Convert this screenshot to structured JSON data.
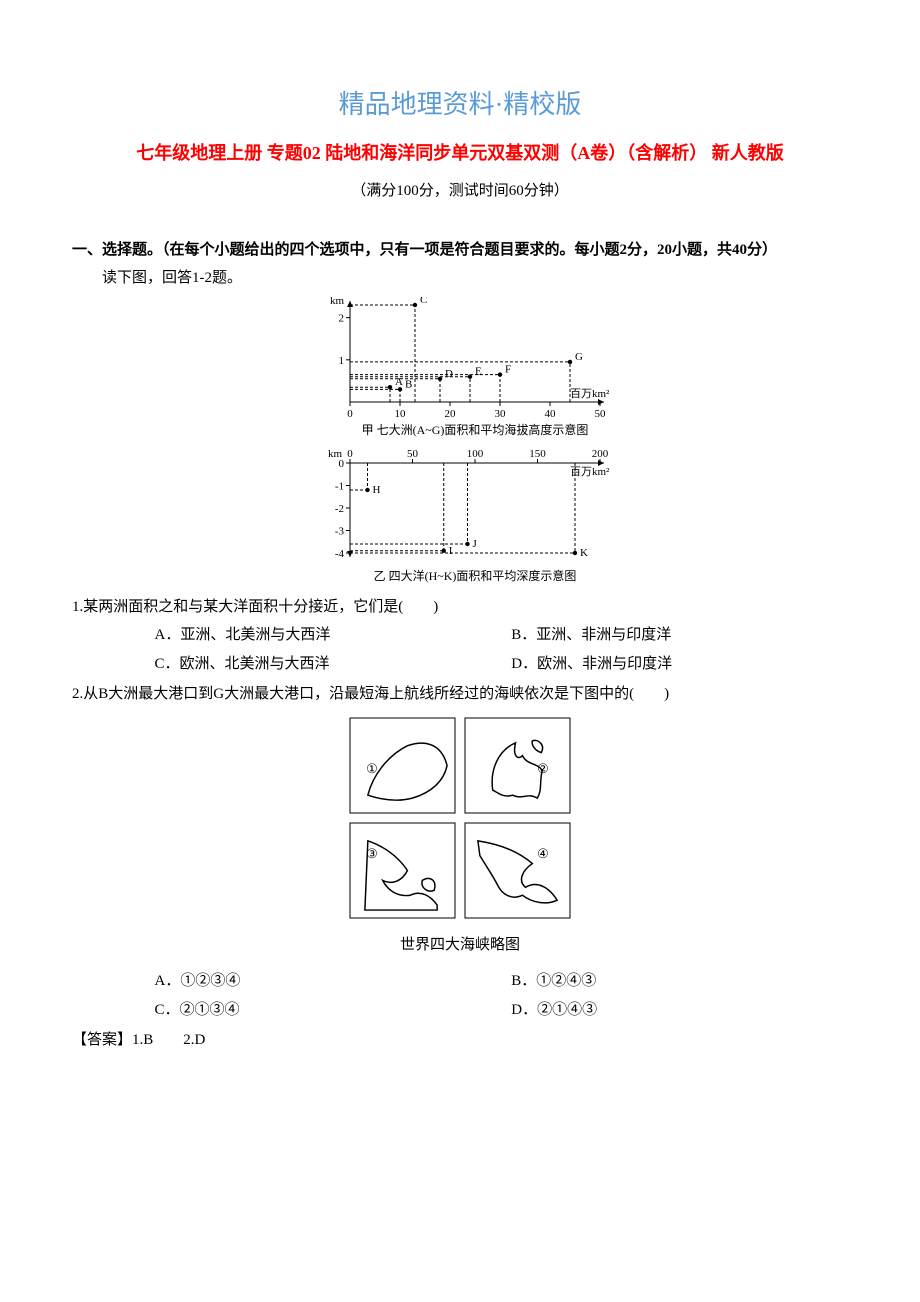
{
  "header": {
    "main_title": "精品地理资料·精校版",
    "sub_title": "七年级地理上册 专题02 陆地和海洋同步单元双基双测（A卷）（含解析） 新人教版",
    "info": "（满分100分，测试时间60分钟）"
  },
  "section1": {
    "heading": "一、选择题。（在每个小题给出的四个选项中，只有一项是符合题目要求的。每小题2分，20小题，共40分）",
    "intro": "读下图，回答1-2题。"
  },
  "chart1": {
    "type": "scatter",
    "title": "甲 七大洲(A~G)面积和平均海拔高度示意图",
    "x_label": "百万km²",
    "y_label": "km",
    "x_min": 0,
    "x_max": 50,
    "x_ticks": [
      0,
      10,
      20,
      30,
      40,
      50
    ],
    "y_min": 0,
    "y_max": 2.3,
    "y_ticks": [
      1,
      2
    ],
    "points": {
      "A": {
        "x": 8,
        "y": 0.35
      },
      "B": {
        "x": 10,
        "y": 0.3
      },
      "C": {
        "x": 13,
        "y": 2.3
      },
      "D": {
        "x": 18,
        "y": 0.55
      },
      "E": {
        "x": 24,
        "y": 0.6
      },
      "F": {
        "x": 30,
        "y": 0.65
      },
      "G": {
        "x": 44,
        "y": 0.95
      }
    },
    "axis_color": "#000000",
    "dash_color": "#000000",
    "fontsize": 11
  },
  "chart2": {
    "type": "scatter",
    "title": "乙 四大洋(H~K)面积和平均深度示意图",
    "x_label": "百万km²",
    "y_label": "km",
    "x_min": 0,
    "x_max": 200,
    "x_ticks": [
      0,
      50,
      100,
      150,
      200
    ],
    "y_min": -4,
    "y_max": 0,
    "y_ticks": [
      0,
      -1,
      -2,
      -3,
      -4
    ],
    "points": {
      "H": {
        "x": 14,
        "y": -1.2
      },
      "I": {
        "x": 75,
        "y": -3.9
      },
      "J": {
        "x": 94,
        "y": -3.6
      },
      "K": {
        "x": 180,
        "y": -4.0
      }
    },
    "axis_color": "#000000",
    "dash_color": "#000000",
    "fontsize": 11
  },
  "q1": {
    "text": "1.某两洲面积之和与某大洋面积十分接近，它们是(　　)",
    "opts": {
      "A": "A．亚洲、北美洲与大西洋",
      "B": "B．亚洲、非洲与印度洋",
      "C": "C．欧洲、北美洲与大西洋",
      "D": "D．欧洲、非洲与印度洋"
    }
  },
  "q2": {
    "text": "2.从B大洲最大港口到G大洲最大港口，沿最短海上航线所经过的海峡依次是下图中的(　　)",
    "opts": {
      "A": "A．①②③④",
      "B": "B．①②④③",
      "C": "C．②①③④",
      "D": "D．②①④③"
    }
  },
  "fig2": {
    "caption": "世界四大海峡略图",
    "labels": {
      "n1": "①",
      "n2": "②",
      "n3": "③",
      "n4": "④"
    }
  },
  "answer": "【答案】1.B　　2.D"
}
